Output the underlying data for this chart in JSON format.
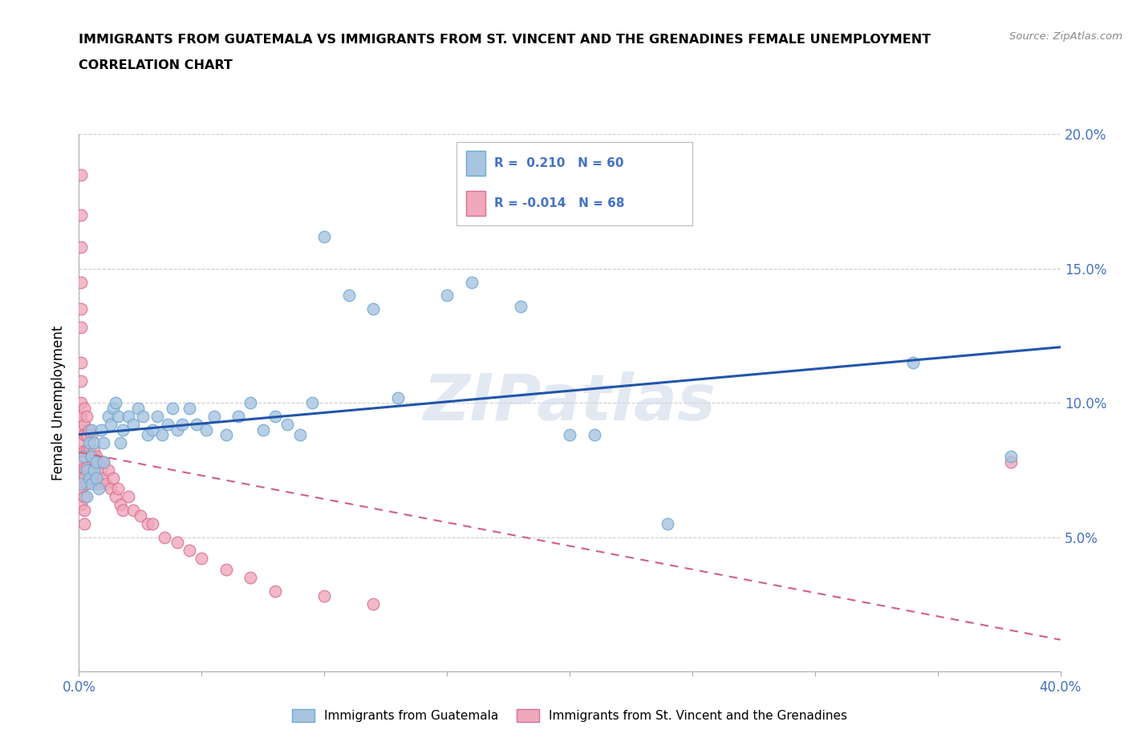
{
  "title_line1": "IMMIGRANTS FROM GUATEMALA VS IMMIGRANTS FROM ST. VINCENT AND THE GRENADINES FEMALE UNEMPLOYMENT",
  "title_line2": "CORRELATION CHART",
  "source_text": "Source: ZipAtlas.com",
  "ylabel": "Female Unemployment",
  "xlim": [
    0.0,
    0.4
  ],
  "ylim": [
    0.0,
    0.2
  ],
  "xticks": [
    0.0,
    0.05,
    0.1,
    0.15,
    0.2,
    0.25,
    0.3,
    0.35,
    0.4
  ],
  "xticklabels": [
    "0.0%",
    "",
    "",
    "",
    "",
    "",
    "",
    "",
    "40.0%"
  ],
  "yticks": [
    0.0,
    0.05,
    0.1,
    0.15,
    0.2
  ],
  "yticklabels": [
    "",
    "5.0%",
    "10.0%",
    "15.0%",
    "20.0%"
  ],
  "watermark": "ZIPatlas",
  "guatemala_color": "#a8c4e0",
  "guatemala_edge": "#6fa8d0",
  "stv_color": "#f0a8bb",
  "stv_edge": "#d97090",
  "trend_guatemala_color": "#2255aa",
  "trend_stv_color": "#d06080",
  "R_guatemala": 0.21,
  "N_guatemala": 60,
  "R_stv": -0.014,
  "N_stv": 68,
  "legend_label_guatemala": "Immigrants from Guatemala",
  "legend_label_stv": "Immigrants from St. Vincent and the Grenadines",
  "guatemala_x": [
    0.001,
    0.002,
    0.003,
    0.003,
    0.004,
    0.004,
    0.005,
    0.005,
    0.005,
    0.006,
    0.006,
    0.007,
    0.007,
    0.008,
    0.009,
    0.01,
    0.01,
    0.012,
    0.013,
    0.014,
    0.015,
    0.016,
    0.017,
    0.018,
    0.02,
    0.022,
    0.024,
    0.026,
    0.028,
    0.03,
    0.032,
    0.034,
    0.036,
    0.038,
    0.04,
    0.042,
    0.045,
    0.048,
    0.052,
    0.055,
    0.06,
    0.065,
    0.07,
    0.075,
    0.08,
    0.085,
    0.09,
    0.095,
    0.1,
    0.11,
    0.12,
    0.13,
    0.15,
    0.16,
    0.18,
    0.2,
    0.21,
    0.24,
    0.34,
    0.38
  ],
  "guatemala_y": [
    0.07,
    0.08,
    0.075,
    0.065,
    0.085,
    0.072,
    0.09,
    0.08,
    0.07,
    0.075,
    0.085,
    0.072,
    0.078,
    0.068,
    0.09,
    0.085,
    0.078,
    0.095,
    0.092,
    0.098,
    0.1,
    0.095,
    0.085,
    0.09,
    0.095,
    0.092,
    0.098,
    0.095,
    0.088,
    0.09,
    0.095,
    0.088,
    0.092,
    0.098,
    0.09,
    0.092,
    0.098,
    0.092,
    0.09,
    0.095,
    0.088,
    0.095,
    0.1,
    0.09,
    0.095,
    0.092,
    0.088,
    0.1,
    0.162,
    0.14,
    0.135,
    0.102,
    0.14,
    0.145,
    0.136,
    0.088,
    0.088,
    0.055,
    0.115,
    0.08
  ],
  "stv_x": [
    0.001,
    0.001,
    0.001,
    0.001,
    0.001,
    0.001,
    0.001,
    0.001,
    0.001,
    0.001,
    0.001,
    0.001,
    0.001,
    0.001,
    0.001,
    0.001,
    0.002,
    0.002,
    0.002,
    0.002,
    0.002,
    0.002,
    0.002,
    0.002,
    0.002,
    0.003,
    0.003,
    0.003,
    0.003,
    0.003,
    0.004,
    0.004,
    0.004,
    0.005,
    0.005,
    0.005,
    0.006,
    0.006,
    0.007,
    0.007,
    0.008,
    0.008,
    0.009,
    0.01,
    0.01,
    0.011,
    0.012,
    0.013,
    0.014,
    0.015,
    0.016,
    0.017,
    0.018,
    0.02,
    0.022,
    0.025,
    0.028,
    0.03,
    0.035,
    0.04,
    0.045,
    0.05,
    0.06,
    0.07,
    0.08,
    0.1,
    0.12,
    0.38
  ],
  "stv_y": [
    0.185,
    0.17,
    0.158,
    0.145,
    0.135,
    0.128,
    0.115,
    0.108,
    0.1,
    0.095,
    0.09,
    0.085,
    0.078,
    0.072,
    0.068,
    0.062,
    0.098,
    0.092,
    0.088,
    0.082,
    0.076,
    0.072,
    0.065,
    0.06,
    0.055,
    0.095,
    0.088,
    0.082,
    0.076,
    0.07,
    0.09,
    0.082,
    0.075,
    0.088,
    0.08,
    0.072,
    0.082,
    0.075,
    0.08,
    0.072,
    0.078,
    0.07,
    0.075,
    0.078,
    0.072,
    0.07,
    0.075,
    0.068,
    0.072,
    0.065,
    0.068,
    0.062,
    0.06,
    0.065,
    0.06,
    0.058,
    0.055,
    0.055,
    0.05,
    0.048,
    0.045,
    0.042,
    0.038,
    0.035,
    0.03,
    0.028,
    0.025,
    0.078
  ]
}
